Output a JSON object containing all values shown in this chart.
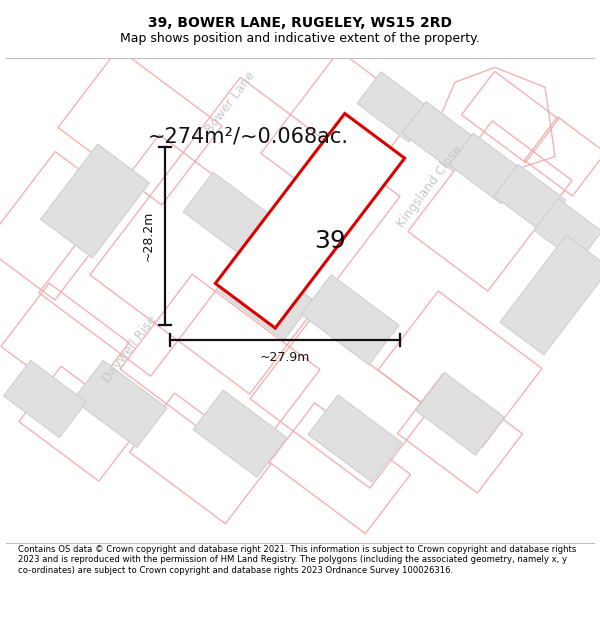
{
  "title": "39, BOWER LANE, RUGELEY, WS15 2RD",
  "subtitle": "Map shows position and indicative extent of the property.",
  "area_text": "~274m²/~0.068ac.",
  "number_label": "39",
  "dim_width": "~27.9m",
  "dim_height": "~28.2m",
  "footer": "Contains OS data © Crown copyright and database right 2021. This information is subject to Crown copyright and database rights 2023 and is reproduced with the permission of HM Land Registry. The polygons (including the associated geometry, namely x, y co-ordinates) are subject to Crown copyright and database rights 2023 Ordnance Survey 100026316.",
  "bg_color": "#ffffff",
  "map_bg": "#ffffff",
  "title_fontsize": 10,
  "subtitle_fontsize": 9,
  "property_color": "#dd0000",
  "street_color": "#c8c8c8",
  "building_face": "#e0e0e0",
  "building_edge": "#cccccc",
  "plot_edge": "#f4aaaa",
  "street_label_bower": "Bower Lane",
  "street_label_kingsland": "Kingsland Close",
  "street_label_daywell": "Daywell Rise"
}
